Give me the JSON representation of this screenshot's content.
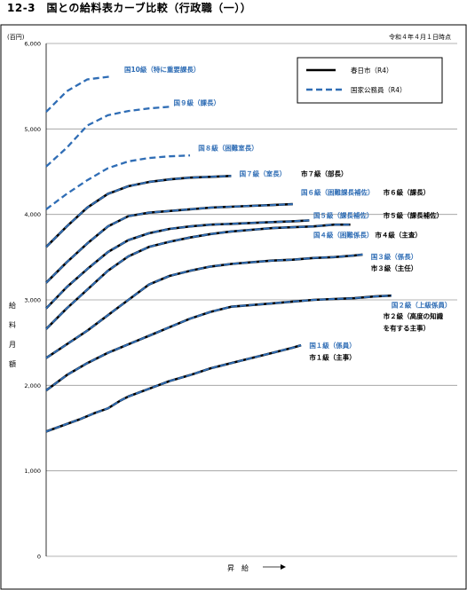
{
  "page_title": "12-3　国との給料表カーブ比較（行政職（一））",
  "chart_data": {
    "type": "line",
    "unit_label": "(百円)",
    "as_of": "令和４年４月１日時点",
    "ylabel_chars": [
      "給",
      "料",
      "月",
      "額"
    ],
    "xlabel": "昇　給",
    "ylim": [
      0,
      6000
    ],
    "xlim": [
      0,
      100
    ],
    "yticks": [
      "0",
      "1,000",
      "2,000",
      "3,000",
      "4,000",
      "5,000",
      "6,000"
    ],
    "grid": true,
    "legend": {
      "position": "top-right",
      "items": [
        {
          "label": "春日市（R4）",
          "style": "solid",
          "color": "#000000"
        },
        {
          "label": "国家公務員（R4）",
          "style": "dashed",
          "color": "#2f6db5"
        }
      ]
    },
    "series": [
      {
        "label": "国１級（係員）",
        "role": "both",
        "x": [
          0,
          4,
          8,
          12,
          15,
          18,
          20,
          25,
          30,
          35,
          40,
          45,
          50,
          55,
          60,
          62
        ],
        "y": [
          1460,
          1530,
          1600,
          1680,
          1730,
          1820,
          1870,
          1960,
          2050,
          2120,
          2200,
          2260,
          2320,
          2380,
          2440,
          2470
        ]
      },
      {
        "label": "国２級（上級係員）",
        "role": "both",
        "x": [
          0,
          5,
          10,
          15,
          20,
          25,
          30,
          35,
          40,
          45,
          50,
          55,
          60,
          65,
          70,
          75,
          80,
          84
        ],
        "y": [
          1940,
          2120,
          2260,
          2380,
          2480,
          2580,
          2680,
          2780,
          2860,
          2920,
          2940,
          2960,
          2980,
          3000,
          3010,
          3020,
          3040,
          3050
        ]
      },
      {
        "label": "国３級（係長）",
        "role": "both",
        "x": [
          0,
          5,
          10,
          15,
          20,
          25,
          30,
          35,
          40,
          45,
          50,
          55,
          60,
          65,
          70,
          75,
          77
        ],
        "y": [
          2320,
          2480,
          2640,
          2820,
          3000,
          3180,
          3280,
          3340,
          3390,
          3420,
          3440,
          3460,
          3470,
          3490,
          3500,
          3520,
          3530
        ]
      },
      {
        "label": "国４級（困難係長）",
        "role": "both",
        "x": [
          0,
          5,
          10,
          15,
          20,
          25,
          30,
          35,
          40,
          45,
          50,
          55,
          60,
          65,
          70,
          74
        ],
        "y": [
          2660,
          2900,
          3120,
          3340,
          3510,
          3620,
          3680,
          3730,
          3770,
          3800,
          3820,
          3840,
          3850,
          3860,
          3880,
          3880
        ]
      },
      {
        "label": "国５級（課長補佐）",
        "role": "both",
        "x": [
          0,
          5,
          10,
          15,
          20,
          25,
          30,
          35,
          40,
          45,
          50,
          55,
          60,
          64
        ],
        "y": [
          2900,
          3150,
          3360,
          3560,
          3700,
          3780,
          3830,
          3860,
          3880,
          3890,
          3900,
          3910,
          3920,
          3930
        ]
      },
      {
        "label": "国６級（困難課長補佐）",
        "role": "both",
        "x": [
          0,
          5,
          10,
          15,
          20,
          25,
          30,
          35,
          40,
          45,
          50,
          55,
          60
        ],
        "y": [
          3200,
          3440,
          3660,
          3860,
          3980,
          4020,
          4040,
          4060,
          4080,
          4090,
          4100,
          4110,
          4120
        ]
      },
      {
        "label": "国７級（室長）",
        "role": "both",
        "x": [
          0,
          5,
          10,
          15,
          20,
          25,
          30,
          35,
          40,
          45
        ],
        "y": [
          3620,
          3860,
          4080,
          4240,
          4330,
          4380,
          4410,
          4430,
          4440,
          4450
        ]
      },
      {
        "label": "国８級（困難室長）",
        "role": "national",
        "x": [
          0,
          5,
          10,
          15,
          20,
          25,
          30,
          35
        ],
        "y": [
          4060,
          4240,
          4400,
          4540,
          4620,
          4660,
          4680,
          4690
        ]
      },
      {
        "label": "国９級（課長）",
        "role": "national",
        "x": [
          0,
          5,
          10,
          15,
          20,
          25,
          30
        ],
        "y": [
          4560,
          4780,
          5040,
          5160,
          5210,
          5240,
          5260
        ]
      },
      {
        "label": "国10級（特に重要課長）",
        "role": "national",
        "x": [
          0,
          5,
          10,
          15,
          16
        ],
        "y": [
          5200,
          5440,
          5580,
          5610,
          5620
        ]
      }
    ],
    "annotations": [
      {
        "text": "国10級（特に重要課長）",
        "kind": "national",
        "anchor": [
          19,
          5670
        ]
      },
      {
        "text": "国９級（課長）",
        "kind": "national",
        "anchor": [
          31,
          5280
        ]
      },
      {
        "text": "国８級（困難室長）",
        "kind": "national",
        "anchor": [
          37,
          4750
        ]
      },
      {
        "text": "国７級（室長）",
        "kind": "national",
        "anchor": [
          47,
          4450
        ]
      },
      {
        "text": "市７級（部長）",
        "kind": "city",
        "anchor": [
          62,
          4450
        ]
      },
      {
        "text": "国６級（困難課長補佐）",
        "kind": "national",
        "anchor": [
          62,
          4230
        ]
      },
      {
        "text": "市６級（課長）",
        "kind": "city",
        "anchor": [
          82,
          4230
        ]
      },
      {
        "text": "国５級（課長補佐）",
        "kind": "national",
        "anchor": [
          65,
          3960
        ]
      },
      {
        "text": "市５級（課長補佐）",
        "kind": "city",
        "anchor": [
          82,
          3960
        ]
      },
      {
        "text": "国４級（困難係長）",
        "kind": "national",
        "anchor": [
          65,
          3730
        ]
      },
      {
        "text": "市４級（主査）",
        "kind": "city",
        "anchor": [
          80,
          3730
        ]
      },
      {
        "text": "国３級（係長）",
        "kind": "national",
        "anchor": [
          79,
          3480
        ]
      },
      {
        "text": "市３級（主任）",
        "kind": "city",
        "anchor": [
          79,
          3340
        ]
      },
      {
        "text": "国２級（上級係員）",
        "kind": "national",
        "anchor": [
          84,
          2910
        ]
      },
      {
        "text": "市２級（高度の知識",
        "kind": "city",
        "anchor": [
          82,
          2780
        ]
      },
      {
        "text": "を有する主事）",
        "kind": "city",
        "anchor": [
          82,
          2640
        ]
      },
      {
        "text": "国１級（係員）",
        "kind": "national",
        "anchor": [
          64,
          2440
        ]
      },
      {
        "text": "市１級（主事）",
        "kind": "city",
        "anchor": [
          64,
          2300
        ]
      }
    ]
  }
}
